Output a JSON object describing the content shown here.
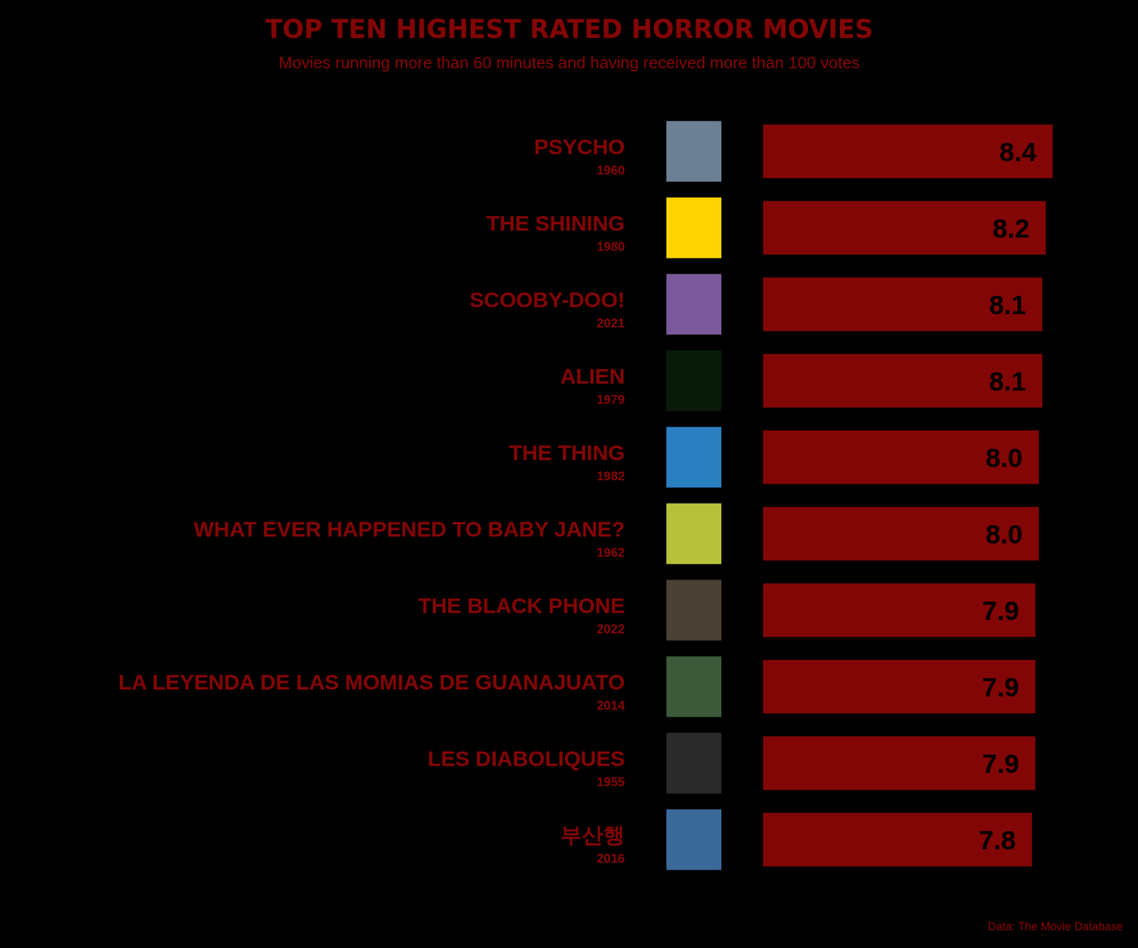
{
  "chart_data": {
    "type": "bar",
    "orientation": "horizontal",
    "title": "TOP TEN HIGHEST RATED HORROR MOVIES",
    "subtitle": "Movies running more than 60 minutes and having received more than 100 votes",
    "source": "Data: The Movie Database",
    "categories": [
      "PSYCHO",
      "THE SHINING",
      "SCOOBY-DOO!",
      "ALIEN",
      "THE THING",
      "WHAT EVER HAPPENED TO BABY JANE?",
      "THE BLACK PHONE",
      "LA LEYENDA DE LAS MOMIAS DE GUANAJUATO",
      "LES DIABOLIQUES",
      "부산행"
    ],
    "years": [
      "1960",
      "1980",
      "2021",
      "1979",
      "1982",
      "1962",
      "2022",
      "2014",
      "1955",
      "2016"
    ],
    "values": [
      8.4,
      8.2,
      8.1,
      8.1,
      8.0,
      8.0,
      7.9,
      7.9,
      7.9,
      7.8
    ],
    "value_labels": [
      "8.4",
      "8.2",
      "8.1",
      "8.1",
      "8.0",
      "8.0",
      "7.9",
      "7.9",
      "7.9",
      "7.8"
    ],
    "color": "#820606",
    "xlim": [
      0,
      8.4
    ],
    "data_labels": true,
    "tick_labels": false,
    "grid": false
  }
}
